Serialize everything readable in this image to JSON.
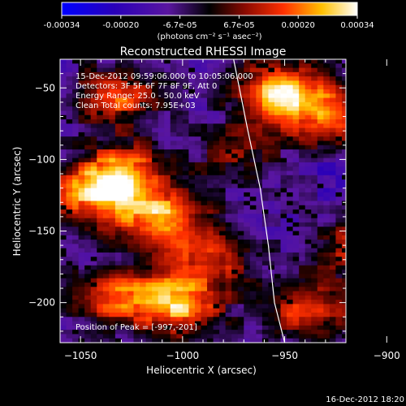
{
  "chart_data": {
    "type": "heatmap",
    "title": "Reconstructed RHESSI Image",
    "xlabel": "Heliocentric X (arcsec)",
    "ylabel": "Heliocentric Y (arcsec)",
    "xlim": [
      -1060,
      -920
    ],
    "ylim": [
      -228,
      -30
    ],
    "xticks": [
      -1050,
      -1000,
      -950,
      -900
    ],
    "yticks": [
      -50,
      -100,
      -150,
      -200
    ],
    "colorbar": {
      "label": "(photons cm⁻² s⁻¹ asec⁻²)",
      "ticks": [
        "-0.00034",
        "-0.00020",
        "-6.7e-05",
        "6.7e-05",
        "0.00020",
        "0.00034"
      ],
      "range": [
        -0.00034,
        0.00034
      ]
    },
    "annotations": [
      "15-Dec-2012 09:59:06.000 to 10:05:06.000",
      "Detectors: 3F 5F 6F 7F 8F 9F, Att 0",
      "Energy Range: 25.0 - 50.0 keV",
      "Clean    Total counts: 7.95E+03"
    ],
    "peak_text": "Position of Peak = [-997,-201]",
    "footer_timestamp": "16-Dec-2012 18:20",
    "hot_regions": [
      {
        "x": -1035,
        "y": -55,
        "w": 0.8
      },
      {
        "x": -1030,
        "y": -108,
        "w": 0.95
      },
      {
        "x": -1048,
        "y": -125,
        "w": 0.8
      },
      {
        "x": -1012,
        "y": -140,
        "w": 0.9
      },
      {
        "x": -988,
        "y": -165,
        "w": 0.7
      },
      {
        "x": -1003,
        "y": -200,
        "w": 1.0
      },
      {
        "x": -1035,
        "y": -195,
        "w": 0.75
      },
      {
        "x": -960,
        "y": -50,
        "w": 0.65
      },
      {
        "x": -945,
        "y": -55,
        "w": 0.55
      },
      {
        "x": -928,
        "y": -70,
        "w": 0.7
      },
      {
        "x": -920,
        "y": -160,
        "w": 0.55
      },
      {
        "x": -942,
        "y": -205,
        "w": 0.7
      },
      {
        "x": -975,
        "y": -95,
        "w": 0.45
      },
      {
        "x": -900,
        "y": -210,
        "w": 0.4
      }
    ],
    "limb_curve": {
      "x": [
        -975,
        -968,
        -962,
        -958,
        -955,
        -950
      ],
      "y": [
        -30,
        -80,
        -120,
        -160,
        -200,
        -228
      ]
    }
  }
}
